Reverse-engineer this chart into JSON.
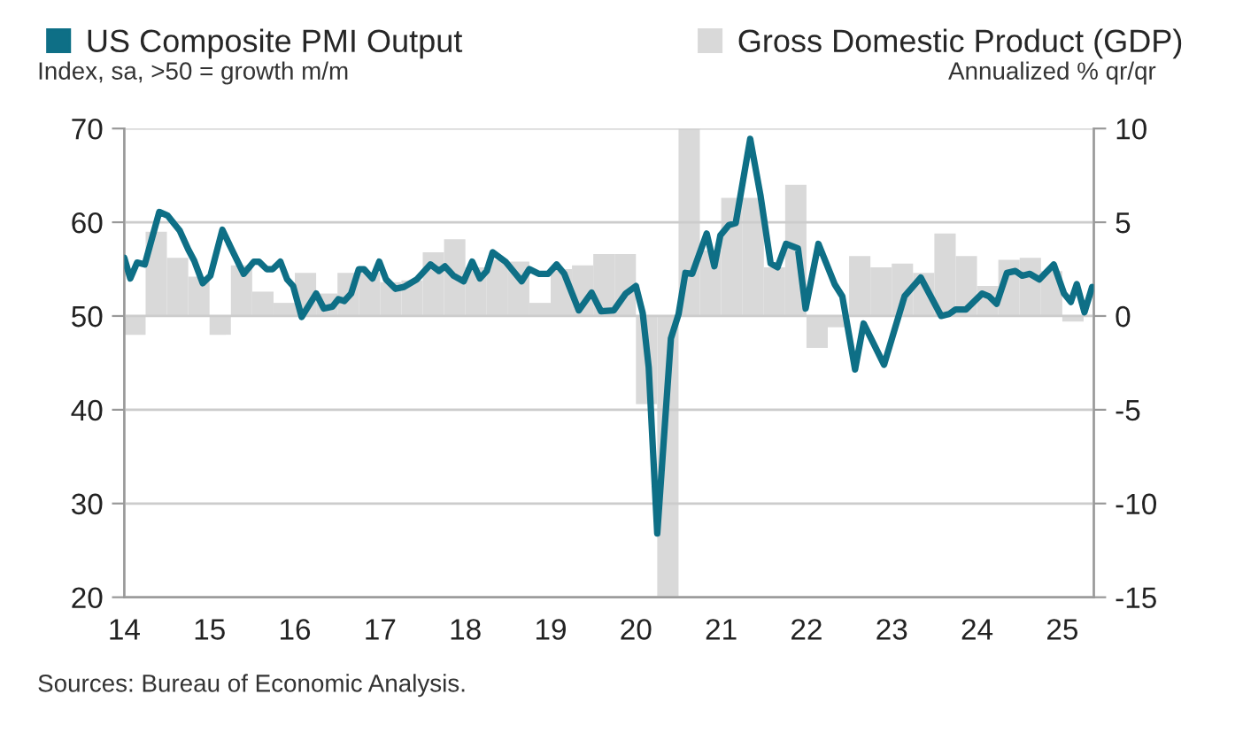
{
  "chart_data": {
    "type": "line",
    "ylabel": "Index, sa, >50 = growth m/m",
    "y2label": "Annualized % qr/qr",
    "annotations": [
      "Sources: Bureau of Economic Analysis."
    ],
    "xlim": [
      14,
      25.37
    ],
    "xticks": [
      14,
      15,
      16,
      17,
      18,
      19,
      20,
      21,
      22,
      23,
      24,
      25
    ],
    "ylim": [
      20,
      70
    ],
    "yticks": [
      20,
      30,
      40,
      50,
      60,
      70
    ],
    "y2lim": [
      -15,
      10
    ],
    "y2ticks": [
      -15,
      -10,
      -5,
      0,
      5,
      10
    ],
    "grid": "y",
    "legend": "top",
    "series": [
      {
        "name": "Gross Domestic Product (GDP)",
        "type": "bar",
        "axis": "y2",
        "color": "#d9d9d9",
        "x": [
          14.125,
          14.375,
          14.625,
          14.875,
          15.125,
          15.375,
          15.625,
          15.875,
          16.125,
          16.375,
          16.625,
          16.875,
          17.125,
          17.375,
          17.625,
          17.875,
          18.125,
          18.375,
          18.625,
          18.875,
          19.125,
          19.375,
          19.625,
          19.875,
          20.125,
          20.375,
          20.625,
          20.875,
          21.125,
          21.375,
          21.625,
          21.875,
          22.125,
          22.375,
          22.625,
          22.875,
          23.125,
          23.375,
          23.625,
          23.875,
          24.125,
          24.375,
          24.625,
          24.875,
          25.125
        ],
        "values": [
          -1.0,
          4.5,
          3.1,
          2.1,
          -1.0,
          2.7,
          1.3,
          0.7,
          2.3,
          1.2,
          2.3,
          2.3,
          1.8,
          1.9,
          3.4,
          4.1,
          2.6,
          3.0,
          2.9,
          0.7,
          2.5,
          2.7,
          3.3,
          3.3,
          -4.7,
          -15,
          10,
          3.5,
          6.3,
          6.3,
          2.6,
          7.0,
          -1.7,
          -0.6,
          3.2,
          2.6,
          2.8,
          2.3,
          4.4,
          3.2,
          1.6,
          3.0,
          3.1,
          2.4,
          -0.3
        ]
      },
      {
        "name": "US Composite PMI Output",
        "color": "#0e6f86",
        "x": [
          14.0,
          14.07,
          14.15,
          14.24,
          14.41,
          14.51,
          14.65,
          14.75,
          14.82,
          14.92,
          15.01,
          15.15,
          15.26,
          15.4,
          15.52,
          15.58,
          15.67,
          15.74,
          15.83,
          15.91,
          15.98,
          16.08,
          16.25,
          16.34,
          16.44,
          16.51,
          16.58,
          16.66,
          16.75,
          16.81,
          16.91,
          16.99,
          17.07,
          17.18,
          17.28,
          17.43,
          17.59,
          17.69,
          17.76,
          17.86,
          17.98,
          18.08,
          18.17,
          18.25,
          18.32,
          18.47,
          18.66,
          18.75,
          18.86,
          18.97,
          19.07,
          19.16,
          19.33,
          19.48,
          19.59,
          19.74,
          19.88,
          20.0,
          20.08,
          20.15,
          20.25,
          20.41,
          20.5,
          20.58,
          20.66,
          20.83,
          20.92,
          20.99,
          21.09,
          21.17,
          21.34,
          21.46,
          21.58,
          21.66,
          21.76,
          21.9,
          21.99,
          22.14,
          22.33,
          22.42,
          22.57,
          22.67,
          22.91,
          23.15,
          23.34,
          23.58,
          23.67,
          23.75,
          23.87,
          24.06,
          24.14,
          24.23,
          24.35,
          24.45,
          24.53,
          24.62,
          24.73,
          24.9,
          25.02,
          25.1,
          25.17,
          25.26,
          25.35
        ],
        "values": [
          56.2,
          54.0,
          55.7,
          55.5,
          61.1,
          60.7,
          59.1,
          57.1,
          55.9,
          53.5,
          54.3,
          59.2,
          57.1,
          54.5,
          55.8,
          55.8,
          55.0,
          55.0,
          55.8,
          53.9,
          53.2,
          49.9,
          52.4,
          50.8,
          51.0,
          51.8,
          51.6,
          52.4,
          55.0,
          55.0,
          54.0,
          55.8,
          53.9,
          52.9,
          53.1,
          53.9,
          55.5,
          54.8,
          55.3,
          54.3,
          53.7,
          55.8,
          54.0,
          54.8,
          56.8,
          55.8,
          53.7,
          55.0,
          54.5,
          54.5,
          55.5,
          54.5,
          50.6,
          52.5,
          50.5,
          50.6,
          52.4,
          53.2,
          50.3,
          44.5,
          26.8,
          47.6,
          50.2,
          54.6,
          54.5,
          58.8,
          55.3,
          58.6,
          59.7,
          59.9,
          68.9,
          62.9,
          55.6,
          55.2,
          57.7,
          57.2,
          50.8,
          57.7,
          53.4,
          52.1,
          44.3,
          49.2,
          44.8,
          52.1,
          54.1,
          50.0,
          50.2,
          50.7,
          50.7,
          52.4,
          52.1,
          51.3,
          54.6,
          54.8,
          54.3,
          54.5,
          53.9,
          55.5,
          52.4,
          51.5,
          53.4,
          50.4,
          53.1
        ]
      }
    ]
  }
}
